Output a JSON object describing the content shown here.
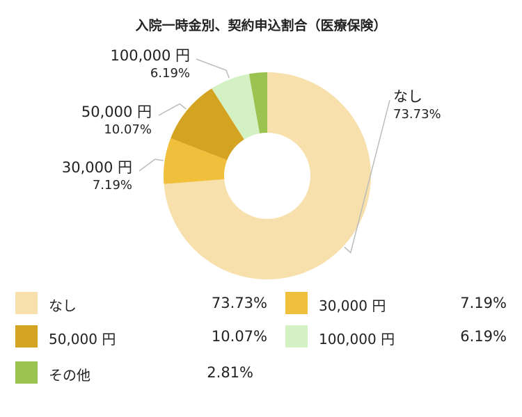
{
  "chart_data": {
    "type": "pie",
    "title": "入院一時金別、契約申込割合（医療保険）",
    "slices": [
      {
        "name": "なし",
        "value": 73.73,
        "value_label": "73.73%",
        "color": "#f7e0ab"
      },
      {
        "name": "30,000 円",
        "value": 7.19,
        "value_label": "7.19%",
        "color": "#f0bf3c"
      },
      {
        "name": "50,000 円",
        "value": 10.07,
        "value_label": "10.07%",
        "color": "#d4a321"
      },
      {
        "name": "100,000 円",
        "value": 6.19,
        "value_label": "6.19%",
        "color": "#d4f1c3"
      },
      {
        "name": "その他",
        "value": 2.81,
        "value_label": "2.81%",
        "color": "#9bc351"
      }
    ],
    "callout_slices": [
      0,
      1,
      2,
      3
    ],
    "legend_position": "bottom",
    "start_angle_deg": 0,
    "direction": "clockwise"
  }
}
